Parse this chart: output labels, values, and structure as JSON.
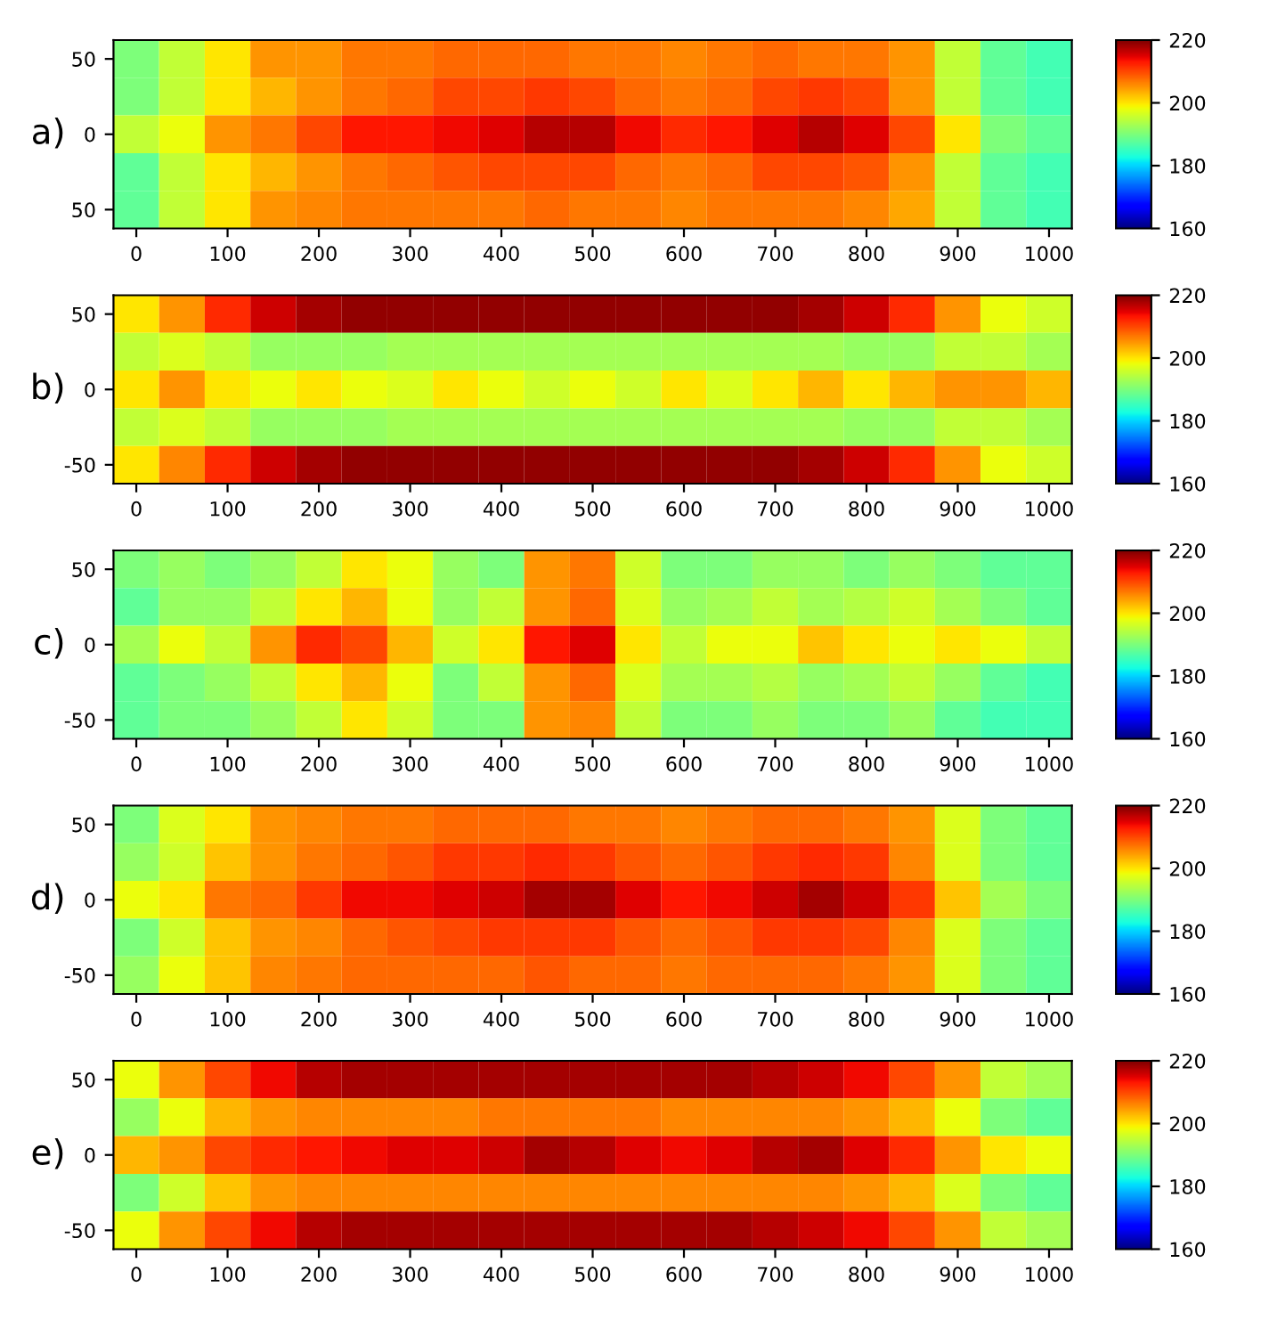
{
  "chart_data": [
    {
      "type": "heatmap",
      "title": "a)",
      "categories": [
        "0",
        null,
        "100",
        null,
        "200",
        null,
        "300",
        null,
        "400",
        null,
        "500",
        null,
        "600",
        null,
        "700",
        null,
        "800",
        null,
        "900",
        null,
        "1000"
      ],
      "y_categories": [
        "50",
        null,
        "0",
        null,
        "50"
      ],
      "cells": [
        [
          190,
          195,
          200,
          205,
          205,
          207,
          207,
          208,
          208,
          208,
          207,
          207,
          206,
          207,
          208,
          207,
          207,
          205,
          195,
          188,
          186
        ],
        [
          190,
          195,
          200,
          203,
          205,
          207,
          208,
          210,
          210,
          211,
          210,
          208,
          207,
          208,
          210,
          211,
          210,
          205,
          195,
          188,
          186
        ],
        [
          195,
          198,
          205,
          207,
          210,
          213,
          213,
          214,
          215,
          217,
          217,
          214,
          212,
          213,
          215,
          217,
          215,
          210,
          200,
          190,
          188
        ],
        [
          188,
          195,
          200,
          203,
          205,
          207,
          208,
          209,
          210,
          210,
          210,
          208,
          207,
          208,
          210,
          210,
          209,
          205,
          195,
          188,
          186
        ],
        [
          188,
          195,
          200,
          205,
          206,
          207,
          207,
          207,
          207,
          208,
          207,
          207,
          206,
          207,
          207,
          207,
          206,
          204,
          195,
          188,
          186
        ]
      ],
      "clim": [
        160,
        220
      ],
      "cticks": [
        160,
        180,
        200,
        220
      ]
    },
    {
      "type": "heatmap",
      "title": "b)",
      "categories": [
        "0",
        null,
        "100",
        null,
        "200",
        null,
        "300",
        null,
        "400",
        null,
        "500",
        null,
        "600",
        null,
        "700",
        null,
        "800",
        null,
        "900",
        null,
        "1000"
      ],
      "y_categories": [
        "50",
        null,
        "0",
        null,
        "-50"
      ],
      "cells": [
        [
          200,
          205,
          212,
          216,
          218,
          219,
          219,
          219,
          219,
          219,
          219,
          219,
          219,
          219,
          219,
          218,
          216,
          212,
          205,
          198,
          196
        ],
        [
          195,
          197,
          195,
          192,
          192,
          192,
          193,
          193,
          193,
          193,
          193,
          193,
          193,
          193,
          193,
          193,
          192,
          192,
          195,
          195,
          193
        ],
        [
          200,
          205,
          200,
          198,
          200,
          198,
          197,
          200,
          198,
          196,
          198,
          196,
          200,
          197,
          200,
          203,
          200,
          203,
          205,
          205,
          203
        ],
        [
          195,
          197,
          195,
          192,
          192,
          192,
          193,
          193,
          193,
          193,
          193,
          193,
          193,
          193,
          193,
          193,
          192,
          192,
          195,
          195,
          193
        ],
        [
          200,
          206,
          212,
          216,
          218,
          219,
          219,
          219,
          219,
          219,
          219,
          219,
          219,
          219,
          219,
          218,
          216,
          212,
          205,
          198,
          196
        ]
      ],
      "clim": [
        160,
        220
      ],
      "cticks": [
        160,
        180,
        200,
        220
      ]
    },
    {
      "type": "heatmap",
      "title": "c)",
      "categories": [
        "0",
        null,
        "100",
        null,
        "200",
        null,
        "300",
        null,
        "400",
        null,
        "500",
        null,
        "600",
        null,
        "700",
        null,
        "800",
        null,
        "900",
        null,
        "1000"
      ],
      "y_categories": [
        "50",
        null,
        "0",
        null,
        "-50"
      ],
      "cells": [
        [
          190,
          192,
          190,
          192,
          195,
          200,
          198,
          192,
          190,
          205,
          207,
          196,
          190,
          190,
          192,
          192,
          190,
          192,
          190,
          188,
          188
        ],
        [
          188,
          192,
          192,
          195,
          200,
          203,
          198,
          192,
          195,
          205,
          208,
          197,
          192,
          193,
          195,
          193,
          194,
          196,
          193,
          190,
          188
        ],
        [
          193,
          198,
          195,
          205,
          212,
          210,
          203,
          196,
          200,
          213,
          215,
          200,
          195,
          198,
          198,
          202,
          200,
          198,
          200,
          198,
          195
        ],
        [
          188,
          190,
          192,
          195,
          200,
          203,
          198,
          190,
          195,
          205,
          208,
          197,
          193,
          193,
          194,
          192,
          193,
          195,
          192,
          188,
          186
        ],
        [
          188,
          190,
          190,
          192,
          195,
          200,
          196,
          190,
          190,
          205,
          206,
          195,
          190,
          190,
          192,
          190,
          190,
          192,
          188,
          186,
          186
        ]
      ],
      "clim": [
        160,
        220
      ],
      "cticks": [
        160,
        180,
        200,
        220
      ]
    },
    {
      "type": "heatmap",
      "title": "d)",
      "categories": [
        "0",
        null,
        "100",
        null,
        "200",
        null,
        "300",
        null,
        "400",
        null,
        "500",
        null,
        "600",
        null,
        "700",
        null,
        "800",
        null,
        "900",
        null,
        "1000"
      ],
      "y_categories": [
        "50",
        null,
        "0",
        null,
        "-50"
      ],
      "cells": [
        [
          190,
          197,
          200,
          205,
          206,
          207,
          207,
          208,
          208,
          208,
          207,
          207,
          206,
          207,
          208,
          208,
          207,
          205,
          197,
          190,
          188
        ],
        [
          192,
          196,
          202,
          205,
          207,
          208,
          209,
          211,
          211,
          212,
          211,
          209,
          208,
          209,
          211,
          212,
          211,
          206,
          197,
          190,
          188
        ],
        [
          198,
          200,
          207,
          208,
          211,
          214,
          214,
          215,
          216,
          218,
          218,
          215,
          213,
          214,
          216,
          218,
          216,
          211,
          202,
          193,
          190
        ],
        [
          190,
          196,
          202,
          205,
          206,
          208,
          209,
          210,
          211,
          211,
          211,
          209,
          208,
          209,
          211,
          211,
          210,
          206,
          197,
          190,
          188
        ],
        [
          192,
          198,
          202,
          206,
          207,
          208,
          208,
          208,
          208,
          209,
          208,
          208,
          207,
          208,
          208,
          208,
          207,
          205,
          197,
          190,
          188
        ]
      ],
      "clim": [
        160,
        220
      ],
      "cticks": [
        160,
        180,
        200,
        220
      ]
    },
    {
      "type": "heatmap",
      "title": "e)",
      "categories": [
        "0",
        null,
        "100",
        null,
        "200",
        null,
        "300",
        null,
        "400",
        null,
        "500",
        null,
        "600",
        null,
        "700",
        null,
        "800",
        null,
        "900",
        null,
        "1000"
      ],
      "y_categories": [
        "50",
        null,
        "0",
        null,
        "-50"
      ],
      "cells": [
        [
          198,
          205,
          210,
          214,
          217,
          218,
          218,
          218,
          218,
          218,
          218,
          218,
          218,
          218,
          217,
          216,
          214,
          210,
          205,
          195,
          193
        ],
        [
          192,
          198,
          203,
          205,
          206,
          206,
          206,
          206,
          207,
          207,
          207,
          207,
          206,
          206,
          206,
          206,
          205,
          203,
          198,
          190,
          188
        ],
        [
          203,
          205,
          210,
          212,
          213,
          214,
          215,
          215,
          216,
          218,
          217,
          215,
          214,
          215,
          217,
          218,
          215,
          212,
          205,
          200,
          198
        ],
        [
          190,
          196,
          202,
          205,
          206,
          206,
          206,
          206,
          206,
          206,
          206,
          206,
          206,
          206,
          206,
          206,
          205,
          203,
          197,
          190,
          188
        ],
        [
          198,
          205,
          210,
          214,
          217,
          218,
          218,
          218,
          218,
          218,
          218,
          218,
          218,
          218,
          217,
          216,
          214,
          210,
          205,
          195,
          193
        ]
      ],
      "clim": [
        160,
        220
      ],
      "cticks": [
        160,
        180,
        200,
        220
      ]
    }
  ]
}
